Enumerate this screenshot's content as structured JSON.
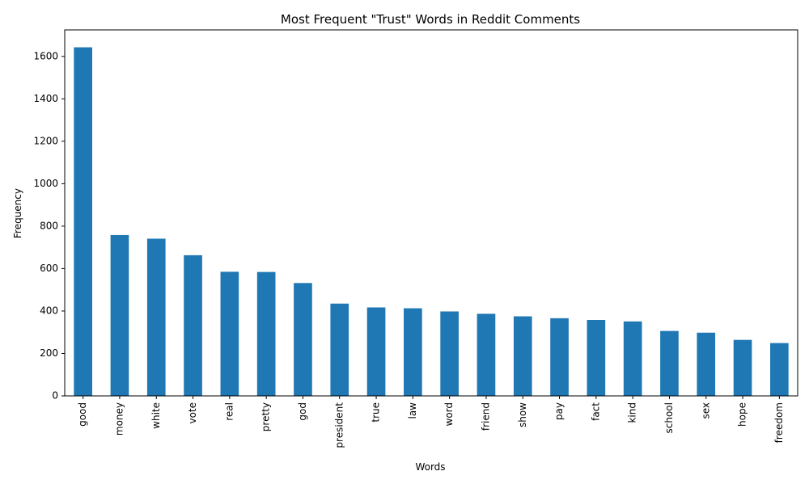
{
  "chart_data": {
    "type": "bar",
    "title": "Most Frequent \"Trust\" Words in Reddit Comments",
    "xlabel": "Words",
    "ylabel": "Frequency",
    "categories": [
      "good",
      "money",
      "white",
      "vote",
      "real",
      "pretty",
      "god",
      "president",
      "true",
      "law",
      "word",
      "friend",
      "show",
      "pay",
      "fact",
      "kind",
      "school",
      "sex",
      "hope",
      "freedom"
    ],
    "values": [
      1643,
      758,
      741,
      663,
      585,
      584,
      532,
      435,
      417,
      413,
      398,
      387,
      375,
      366,
      358,
      351,
      306,
      298,
      264,
      249
    ],
    "yticks": [
      0,
      200,
      400,
      600,
      800,
      1000,
      1200,
      1400,
      1600
    ],
    "ylim": [
      0,
      1725
    ],
    "grid": false,
    "bar_color": "#1f77b4"
  }
}
